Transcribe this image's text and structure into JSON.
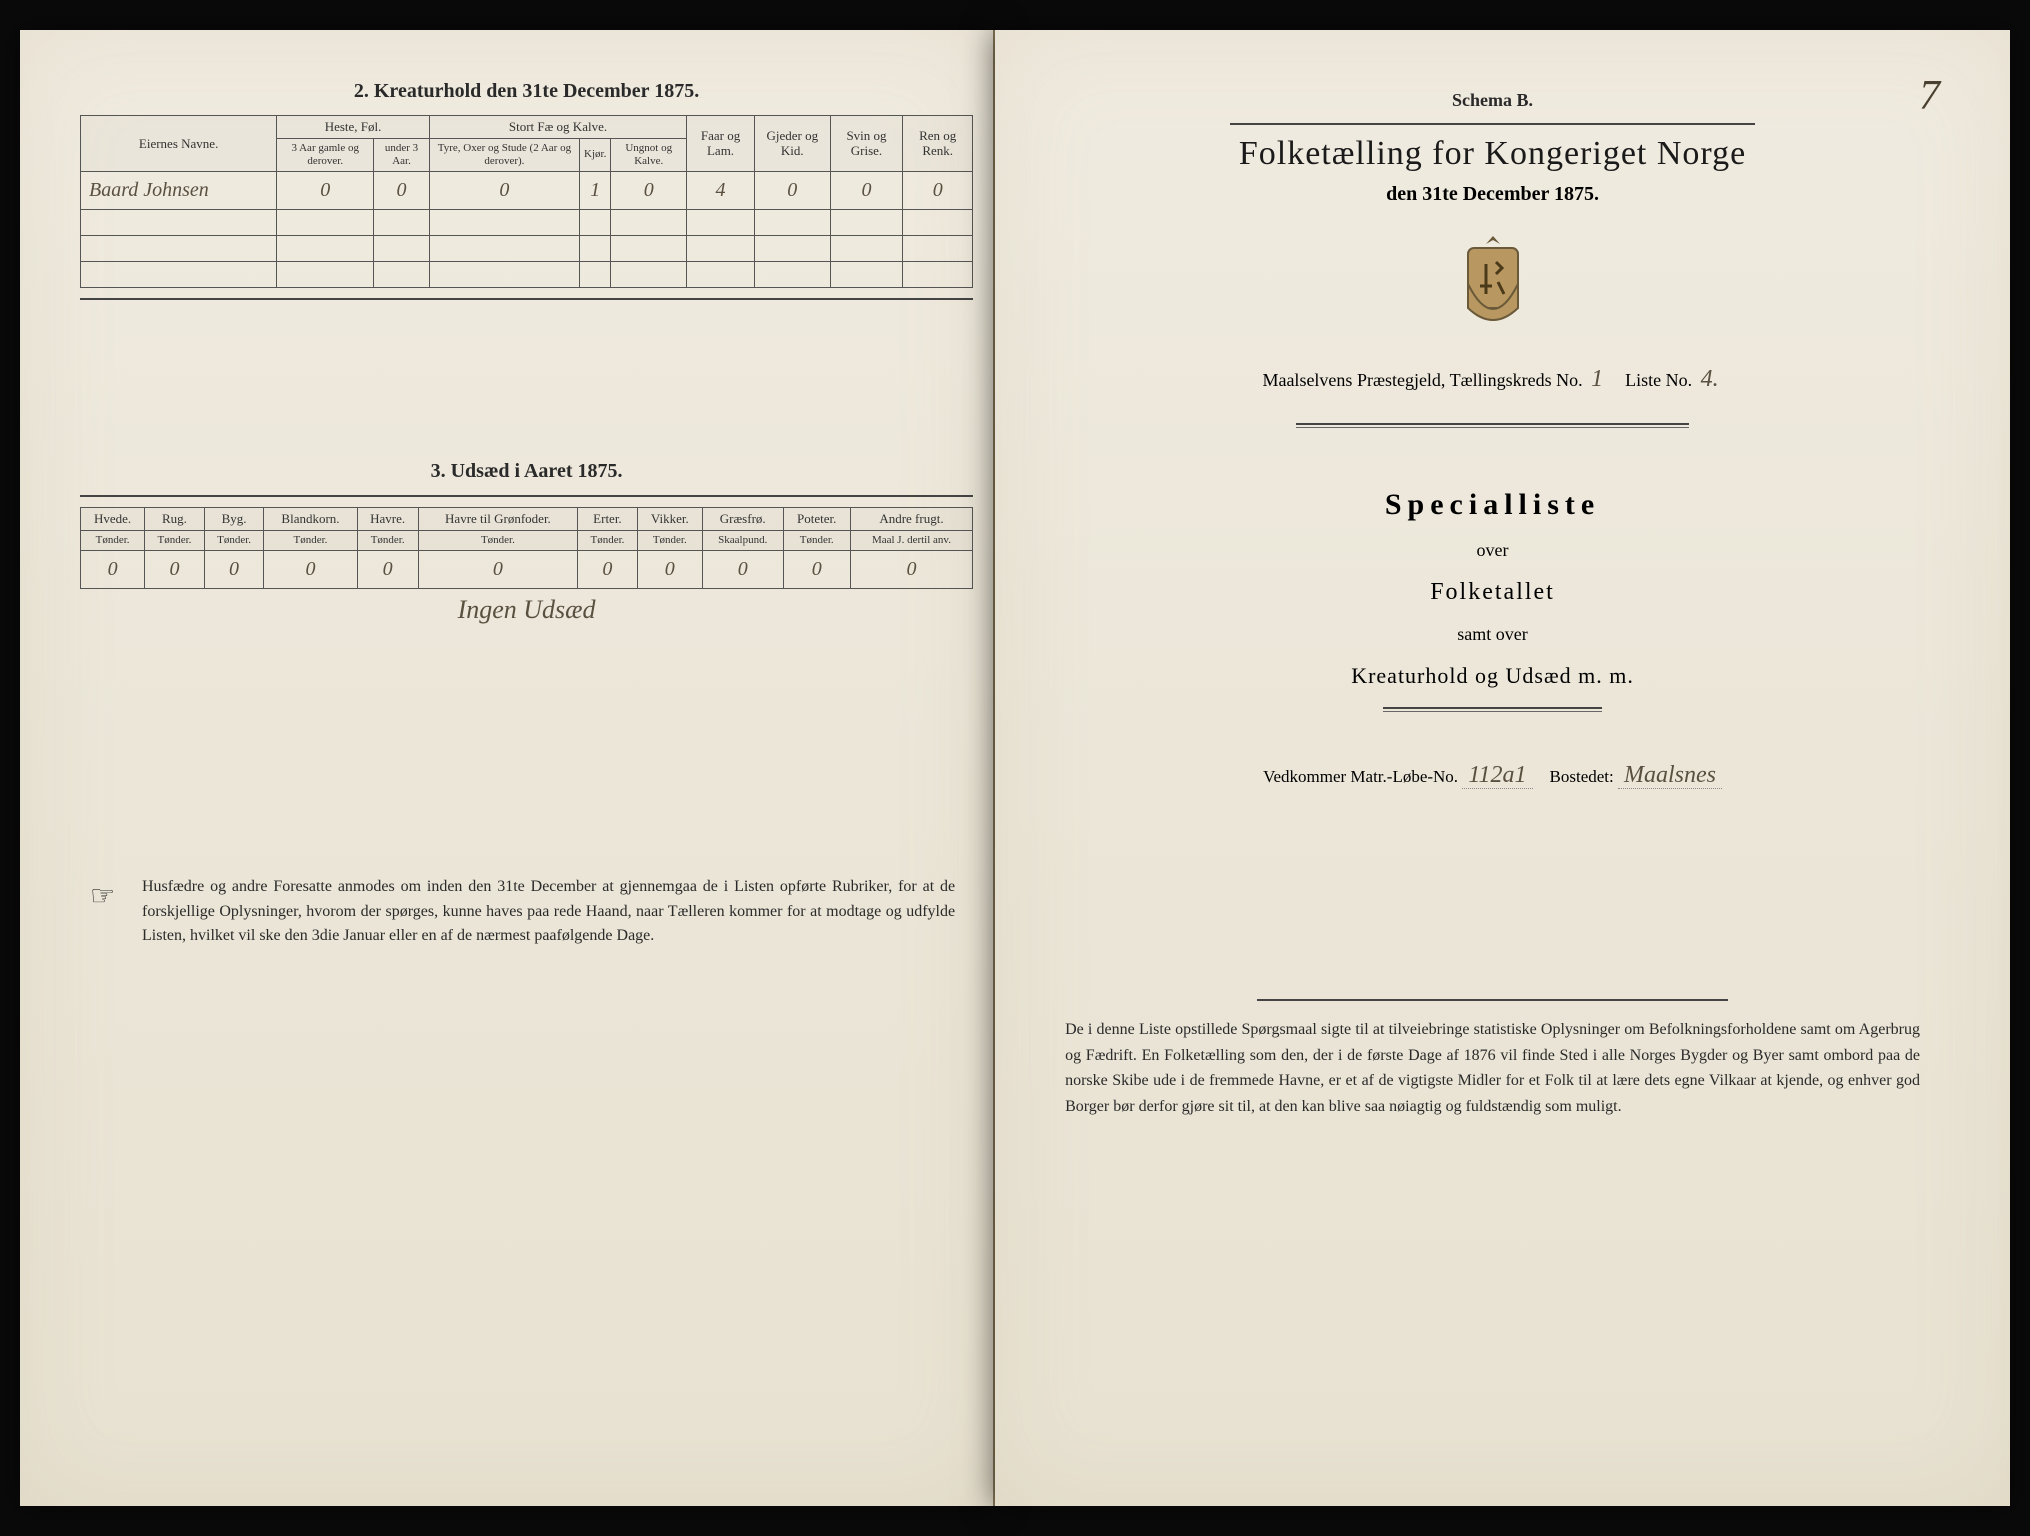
{
  "left": {
    "section2_title": "2. Kreaturhold den 31te December 1875.",
    "table2": {
      "col_owner": "Eiernes Navne.",
      "grp_horses": "Heste, Føl.",
      "grp_cattle": "Stort Fæ og Kalve.",
      "col_sheep": "Faar og Lam.",
      "col_goat": "Gjeder og Kid.",
      "col_pig": "Svin og Grise.",
      "col_rein": "Ren og Renk.",
      "h1": "3 Aar gamle og derover.",
      "h2": "under 3 Aar.",
      "c1": "Tyre, Oxer og Stude (2 Aar og derover).",
      "c2": "Kjør.",
      "c3": "Ungnot og Kalve.",
      "row": {
        "name": "Baard Johnsen",
        "v": [
          "0",
          "0",
          "0",
          "1",
          "0",
          "4",
          "0",
          "0",
          "0"
        ]
      }
    },
    "section3_title": "3. Udsæd i Aaret 1875.",
    "table3": {
      "cols": [
        "Hvede.",
        "Rug.",
        "Byg.",
        "Blandkorn.",
        "Havre.",
        "Havre til Grønfoder.",
        "Erter.",
        "Vikker.",
        "Græsfrø.",
        "Poteter.",
        "Andre frugt."
      ],
      "units": [
        "Tønder.",
        "Tønder.",
        "Tønder.",
        "Tønder.",
        "Tønder.",
        "Tønder.",
        "Tønder.",
        "Tønder.",
        "Skaalpund.",
        "Tønder.",
        "Maal J. dertil anv."
      ],
      "row": [
        "0",
        "0",
        "0",
        "0",
        "0",
        "0",
        "0",
        "0",
        "0",
        "0",
        "0"
      ],
      "note": "Ingen Udsæd"
    },
    "footer": "Husfædre og andre Foresatte anmodes om inden den 31te December at gjennemgaa de i Listen opførte Rubriker, for at de forskjellige Oplysninger, hvorom der spørges, kunne haves paa rede Haand, naar Tælleren kommer for at modtage og udfylde Listen, hvilket vil ske den 3die Januar eller en af de nærmest paafølgende Dage."
  },
  "right": {
    "page_num": "7",
    "schema": "Schema B.",
    "title": "Folketælling for Kongeriget Norge",
    "date": "den 31te December 1875.",
    "parish_label_pre": "Maalselvens",
    "parish_label": "Præstegjeld, Tællingskreds No.",
    "kreds_no": "1",
    "liste_label": "Liste No.",
    "liste_no": "4.",
    "special": "Specialliste",
    "over": "over",
    "folketallet": "Folketallet",
    "samt": "samt over",
    "kreatur": "Kreaturhold og Udsæd m. m.",
    "vedk_label1": "Vedkommer Matr.-Løbe-No.",
    "matr_no": "112a1",
    "vedk_label2": "Bostedet:",
    "bosted": "Maalsnes",
    "footer": "De i denne Liste opstillede Spørgsmaal sigte til at tilveiebringe statistiske Oplysninger om Befolkningsforholdene samt om Agerbrug og Fædrift. En Folketælling som den, der i de første Dage af 1876 vil finde Sted i alle Norges Bygder og Byer samt ombord paa de norske Skibe ude i de fremmede Havne, er et af de vigtigste Midler for et Folk til at lære dets egne Vilkaar at kjende, og enhver god Borger bør derfor gjøre sit til, at den kan blive saa nøiagtig og fuldstændig som muligt."
  }
}
